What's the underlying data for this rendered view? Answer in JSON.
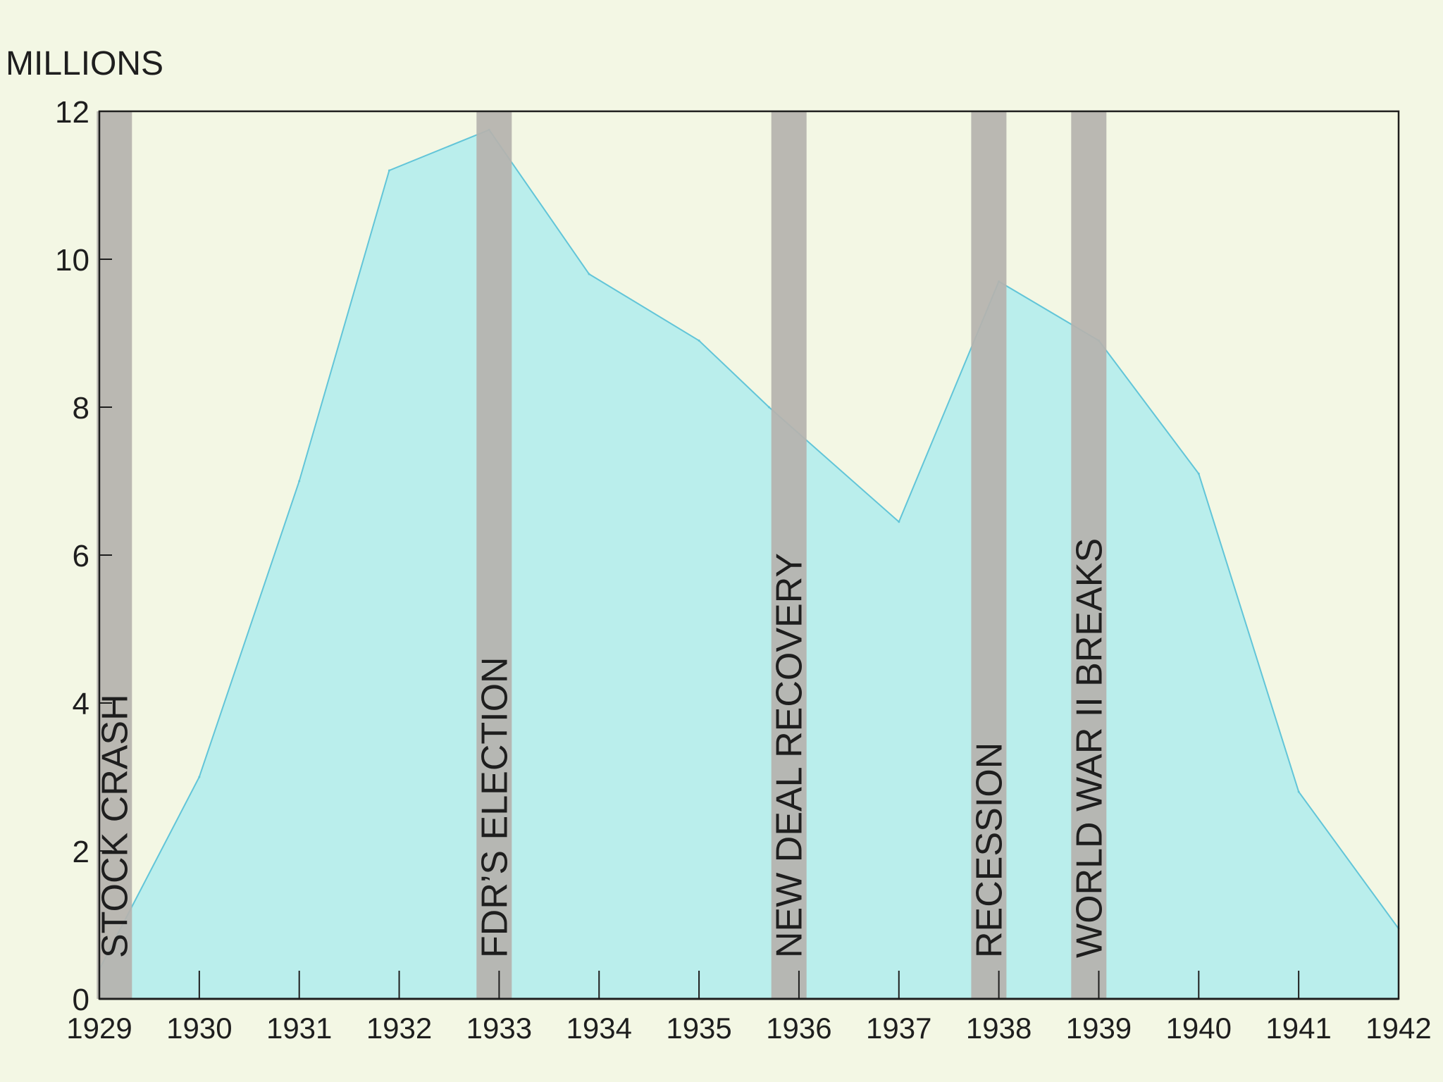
{
  "chart_data": {
    "type": "area",
    "ylabel": "MILLIONS",
    "x": [
      1929,
      1930,
      1931,
      1932,
      1933,
      1934,
      1935,
      1936,
      1937,
      1938,
      1939,
      1940,
      1941,
      1942
    ],
    "xlim": [
      1929,
      1942
    ],
    "ylim": [
      0,
      12
    ],
    "xticks": [
      1929,
      1930,
      1931,
      1932,
      1933,
      1934,
      1935,
      1936,
      1937,
      1938,
      1939,
      1940,
      1941,
      1942
    ],
    "xtick_labels": [
      "1929",
      "1930",
      "1931",
      "1932",
      "1933",
      "1934",
      "1935",
      "1936",
      "1937",
      "1938",
      "1939",
      "1940",
      "1941",
      "1942"
    ],
    "yticks": [
      0,
      2,
      4,
      6,
      8,
      10,
      12
    ],
    "ytick_labels": [
      "0",
      "2",
      "4",
      "6",
      "8",
      "10",
      "12"
    ],
    "grid": false,
    "series": [
      {
        "points": [
          [
            1929.0,
            0.4
          ],
          [
            1930.0,
            3.0
          ],
          [
            1931.0,
            7.0
          ],
          [
            1931.9,
            11.2
          ],
          [
            1932.9,
            11.75
          ],
          [
            1933.9,
            9.8
          ],
          [
            1935.0,
            8.9
          ],
          [
            1935.7,
            8.0
          ],
          [
            1937.0,
            6.45
          ],
          [
            1938.0,
            9.7
          ],
          [
            1939.0,
            8.9
          ],
          [
            1940.0,
            7.1
          ],
          [
            1941.0,
            2.8
          ],
          [
            1942.0,
            0.95
          ]
        ],
        "color": "#62c5d8",
        "fill": "#b4ecec"
      }
    ],
    "events": [
      {
        "label": "STOCK CRASH",
        "x": 1929.15
      },
      {
        "label": "FDR’S  ELECTION",
        "x": 1932.95
      },
      {
        "label": "NEW DEAL RECOVERY",
        "x": 1935.9
      },
      {
        "label": "RECESSION",
        "x": 1937.9
      },
      {
        "label": "WORLD WAR II BREAKS",
        "x": 1938.9
      }
    ],
    "colors": {
      "background": "#f3f7e4",
      "event_band": "#b5b2ae",
      "axis": "#1e1e1e"
    }
  }
}
